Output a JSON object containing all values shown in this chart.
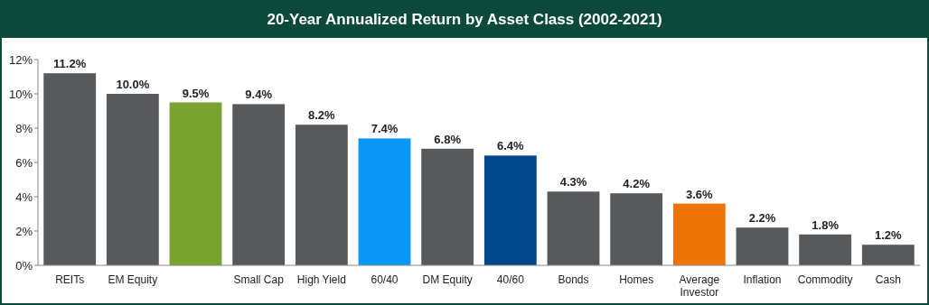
{
  "chart_data": {
    "type": "bar",
    "title": "20-Year Annualized Return by Asset Class (2002-2021)",
    "categories": [
      "REITs",
      "EM Equity",
      null,
      "Small Cap",
      "High Yield",
      "60/40",
      "DM Equity",
      "40/60",
      "Bonds",
      "Homes",
      "Average Investor",
      "Inflation",
      "Commodity",
      "Cash"
    ],
    "values": [
      11.2,
      10.0,
      9.5,
      9.4,
      8.2,
      7.4,
      6.8,
      6.4,
      4.3,
      4.2,
      3.6,
      2.2,
      1.8,
      1.2
    ],
    "colors": [
      "#58595b",
      "#58595b",
      "#7aa22f",
      "#58595b",
      "#58595b",
      "#0a96f7",
      "#58595b",
      "#00468b",
      "#58595b",
      "#58595b",
      "#ef7406",
      "#58595b",
      "#58595b",
      "#58595b"
    ],
    "value_labels": [
      "11.2%",
      "10.0%",
      "9.5%",
      "9.4%",
      "8.2%",
      "7.4%",
      "6.8%",
      "6.4%",
      "4.3%",
      "4.2%",
      "3.6%",
      "2.2%",
      "1.8%",
      "1.2%"
    ],
    "ylim": [
      0,
      12
    ],
    "yticks": [
      {
        "value": 0,
        "label": "0%"
      },
      {
        "value": 2,
        "label": "2%"
      },
      {
        "value": 4,
        "label": "4%"
      },
      {
        "value": 6,
        "label": "6%"
      },
      {
        "value": 8,
        "label": "8%"
      },
      {
        "value": 10,
        "label": "10%"
      },
      {
        "value": 12,
        "label": "12%"
      }
    ],
    "grid": false
  }
}
